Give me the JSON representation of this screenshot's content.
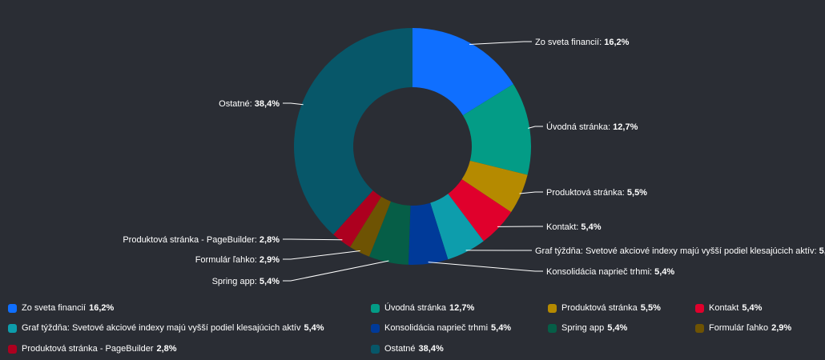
{
  "chart_data": {
    "type": "pie",
    "variant": "donut",
    "legend_position": "bottom",
    "slices": [
      {
        "name": "Zo sveta financií",
        "value": 16.2,
        "value_label": "16,2%",
        "color": "#0f6fff"
      },
      {
        "name": "Úvodná stránka",
        "value": 12.7,
        "value_label": "12,7%",
        "color": "#039c86"
      },
      {
        "name": "Produktová stránka",
        "value": 5.5,
        "value_label": "5,5%",
        "color": "#b58a00"
      },
      {
        "name": "Kontakt",
        "value": 5.4,
        "value_label": "5,4%",
        "color": "#e0002c"
      },
      {
        "name": "Graf týždňa: Svetové akciové indexy majú vyšší podiel klesajúcich aktív",
        "value": 5.4,
        "value_label": "5,4%",
        "color": "#0d9dac"
      },
      {
        "name": "Konsolidácia naprieč trhmi",
        "value": 5.4,
        "value_label": "5,4%",
        "color": "#003a99"
      },
      {
        "name": "Spring app",
        "value": 5.4,
        "value_label": "5,4%",
        "color": "#065e47"
      },
      {
        "name": "Formulár ľahko",
        "value": 2.9,
        "value_label": "2,9%",
        "color": "#6e5303"
      },
      {
        "name": "Produktová stránka - PageBuilder",
        "value": 2.8,
        "value_label": "2,8%",
        "color": "#ad001f"
      },
      {
        "name": "Ostatné",
        "value": 38.4,
        "value_label": "38,4%",
        "color": "#075769"
      }
    ]
  }
}
